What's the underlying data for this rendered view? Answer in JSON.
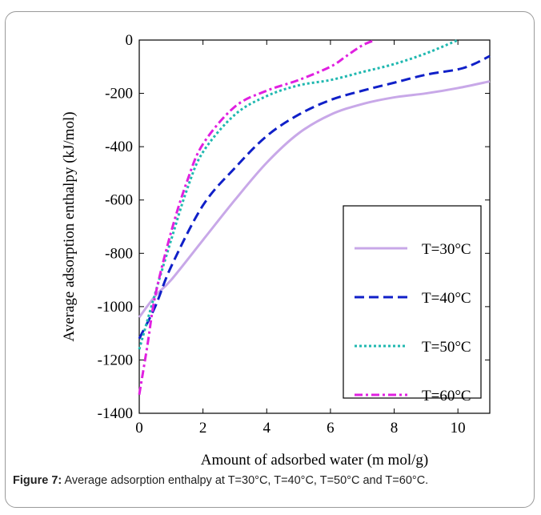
{
  "chart_data": {
    "type": "line",
    "title": "",
    "xlabel": "Amount of adsorbed water (m mol/g)",
    "ylabel": "Average adsorption enthalpy (kJ/mol)",
    "xlim": [
      0,
      11
    ],
    "ylim": [
      -1400,
      0
    ],
    "xticks": [
      0,
      2,
      4,
      6,
      8,
      10
    ],
    "yticks": [
      0,
      -200,
      -400,
      -600,
      -800,
      -1000,
      -1200,
      -1400
    ],
    "grid": false,
    "legend_position": "bottom-right",
    "series": [
      {
        "name": "T=30°C",
        "color": "#c8a8e8",
        "style": "solid",
        "x": [
          0,
          0.5,
          1,
          2,
          3,
          4,
          5,
          6,
          7,
          8,
          9,
          10,
          11
        ],
        "y": [
          -1040,
          -960,
          -900,
          -750,
          -600,
          -460,
          -350,
          -280,
          -240,
          -215,
          -200,
          -180,
          -155
        ]
      },
      {
        "name": "T=40°C",
        "color": "#1020c8",
        "style": "dashed",
        "x": [
          0,
          0.5,
          1,
          2,
          3,
          4,
          5,
          6,
          7,
          8,
          9,
          10,
          10.5,
          11
        ],
        "y": [
          -1120,
          -1000,
          -850,
          -620,
          -480,
          -360,
          -280,
          -225,
          -190,
          -160,
          -130,
          -110,
          -90,
          -60
        ]
      },
      {
        "name": "T=50°C",
        "color": "#20b8b0",
        "style": "dotted",
        "x": [
          0,
          0.5,
          1,
          1.5,
          2,
          3,
          4,
          5,
          6,
          7,
          8,
          9,
          10
        ],
        "y": [
          -1160,
          -950,
          -750,
          -560,
          -420,
          -280,
          -210,
          -170,
          -150,
          -120,
          -90,
          -50,
          0
        ]
      },
      {
        "name": "T=60°C",
        "color": "#e020e0",
        "style": "dashdot",
        "x": [
          0,
          0.25,
          0.5,
          1,
          1.5,
          2,
          3,
          4,
          5,
          6,
          6.5,
          7,
          7.4
        ],
        "y": [
          -1330,
          -1150,
          -960,
          -720,
          -530,
          -390,
          -250,
          -190,
          -150,
          -100,
          -60,
          -20,
          0
        ]
      }
    ]
  },
  "caption": {
    "label": "Figure 7:",
    "text": " Average adsorption enthalpy at T=30°C, T=40°C, T=50°C and T=60°C."
  }
}
